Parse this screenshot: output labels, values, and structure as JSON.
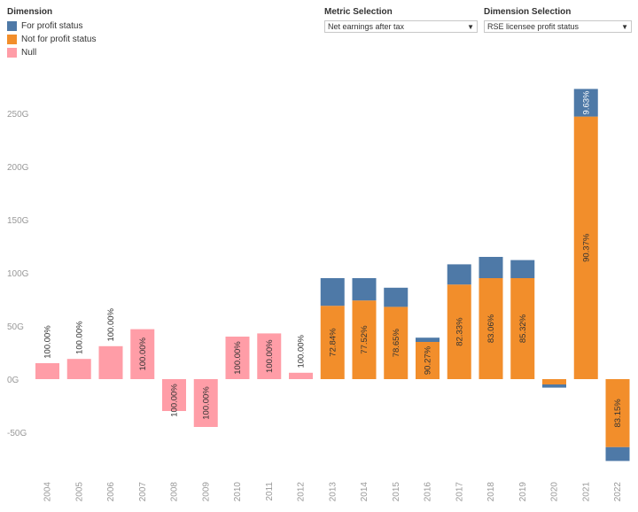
{
  "legend": {
    "title": "Dimension",
    "items": [
      {
        "label": "For profit status",
        "color": "#4e79a7"
      },
      {
        "label": "Not for profit status",
        "color": "#f28e2b"
      },
      {
        "label": "Null",
        "color": "#ff9da7"
      }
    ]
  },
  "metric_selection": {
    "label": "Metric Selection",
    "value": "Net earnings after tax"
  },
  "dimension_selection": {
    "label": "Dimension Selection",
    "value": "RSE licensee profit status"
  },
  "chart_data": {
    "type": "bar",
    "stacked": true,
    "title": "",
    "xlabel": "",
    "ylabel": "",
    "ylim": [
      -75,
      270
    ],
    "yticks": [
      -50,
      0,
      50,
      100,
      150,
      200,
      250
    ],
    "ytick_labels": [
      "-50G",
      "0G",
      "50G",
      "100G",
      "150G",
      "200G",
      "250G"
    ],
    "categories": [
      "2004",
      "2005",
      "2006",
      "2007",
      "2008",
      "2009",
      "2010",
      "2011",
      "2012",
      "2013",
      "2014",
      "2015",
      "2016",
      "2017",
      "2018",
      "2019",
      "2020",
      "2021",
      "2022"
    ],
    "series": [
      {
        "name": "Null",
        "color": "#ff9da7",
        "values": [
          15,
          19,
          31,
          47,
          -30,
          -45,
          40,
          43,
          6,
          0,
          0,
          0,
          0,
          0,
          0,
          0,
          0,
          0,
          0
        ]
      },
      {
        "name": "Not for profit status",
        "color": "#f28e2b",
        "values": [
          0,
          0,
          0,
          0,
          0,
          0,
          0,
          0,
          0,
          69,
          74,
          68,
          35,
          89,
          95,
          95,
          -5,
          247,
          -64
        ]
      },
      {
        "name": "For profit status",
        "color": "#4e79a7",
        "values": [
          0,
          0,
          0,
          0,
          0,
          0,
          0,
          0,
          0,
          26,
          21,
          18,
          4,
          19,
          20,
          17,
          -3,
          26,
          -13
        ]
      }
    ],
    "labels": [
      "100.00%",
      "100.00%",
      "100.00%",
      "100.00%",
      "100.00%",
      "100.00%",
      "100.00%",
      "100.00%",
      "100.00%",
      "72.84%",
      "77.52%",
      "78.65%",
      "90.27%",
      "82.33%",
      "83.06%",
      "85.32%",
      "",
      "90.37%",
      "83.15%"
    ],
    "top_label_2021": "9.63%"
  }
}
